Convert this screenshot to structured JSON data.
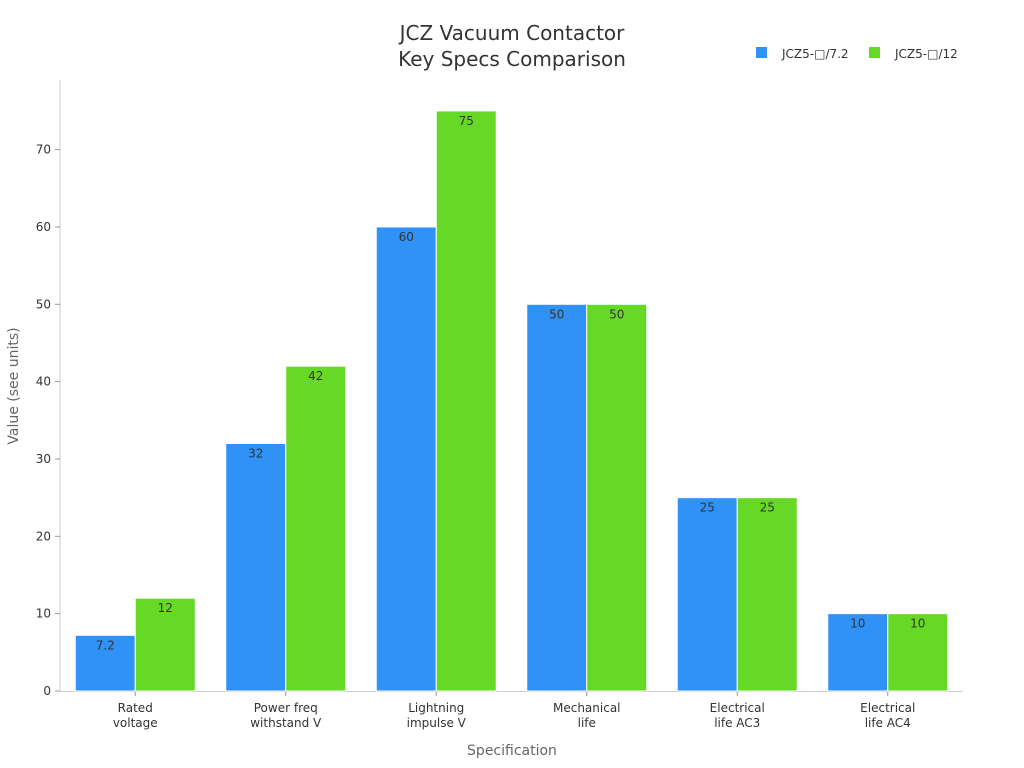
{
  "chart_data": {
    "type": "bar",
    "title": [
      "JCZ Vacuum Contactor",
      "Key Specs Comparison"
    ],
    "xlabel": "Specification",
    "ylabel": "Value (see units)",
    "categories": [
      [
        "Rated",
        "voltage"
      ],
      [
        "Power freq",
        "withstand V"
      ],
      [
        "Lightning",
        "impulse V"
      ],
      [
        "Mechanical",
        "life"
      ],
      [
        "Electrical",
        "life AC3"
      ],
      [
        "Electrical",
        "life AC4"
      ]
    ],
    "series": [
      {
        "name": "JCZ5-□/7.2",
        "color": "#3091f7",
        "values": [
          7.2,
          32,
          60,
          50,
          25,
          10
        ]
      },
      {
        "name": "JCZ5-□/12",
        "color": "#66d926",
        "values": [
          12,
          42,
          75,
          50,
          25,
          10
        ]
      }
    ],
    "ylim": [
      0,
      79
    ],
    "yticks": [
      0,
      10,
      20,
      30,
      40,
      50,
      60,
      70
    ],
    "grid": false,
    "legend": "top-right"
  }
}
